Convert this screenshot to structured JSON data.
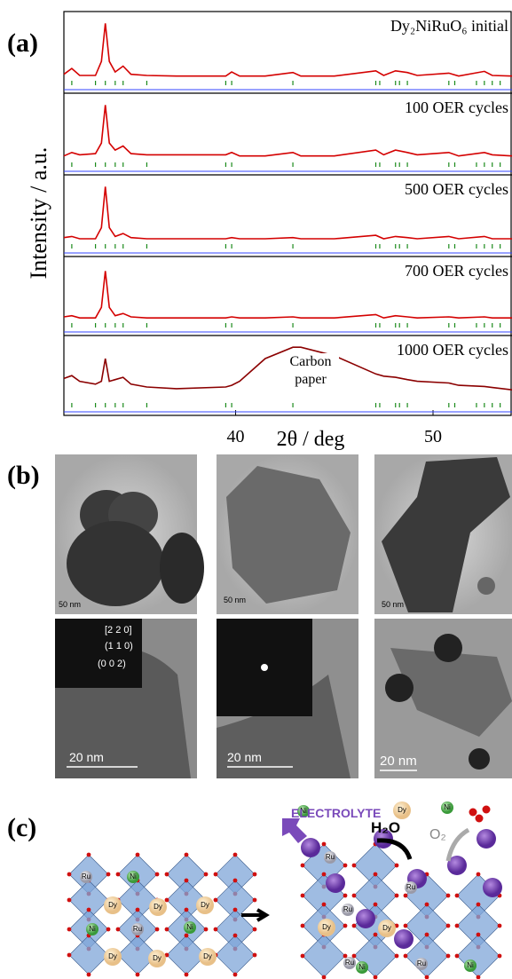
{
  "chart_data": {
    "type": "line",
    "panel_label": "(a)",
    "ylabel": "Intensity / a.u.",
    "xlabel": "2θ / deg",
    "xlim": [
      31.3,
      54
    ],
    "xticks": [
      40,
      50
    ],
    "ylim": [
      0,
      100
    ],
    "x": [
      31.3,
      31.7,
      32.1,
      32.9,
      33.2,
      33.4,
      33.6,
      33.9,
      34.3,
      34.7,
      35.5,
      37,
      39.5,
      39.8,
      40.2,
      41.5,
      42.9,
      43.3,
      45,
      47.1,
      47.5,
      48.1,
      48.7,
      49.2,
      50.8,
      51.3,
      52.6,
      53.0,
      54
    ],
    "series": [
      {
        "name": "Dy₂NiRuO₆ initial",
        "color": "#d40000",
        "values": [
          8,
          18,
          6,
          6,
          30,
          95,
          30,
          12,
          22,
          8,
          6,
          5,
          5,
          12,
          5,
          5,
          11,
          5,
          5,
          14,
          6,
          14,
          11,
          6,
          10,
          5,
          13,
          6,
          5
        ]
      },
      {
        "name": "100 OER cycles",
        "color": "#d40000",
        "values": [
          8,
          14,
          10,
          12,
          30,
          95,
          30,
          18,
          25,
          12,
          10,
          10,
          10,
          14,
          8,
          8,
          14,
          8,
          8,
          18,
          10,
          18,
          14,
          10,
          14,
          8,
          14,
          10,
          8
        ]
      },
      {
        "name": "500 OER cycles",
        "color": "#d40000",
        "values": [
          8,
          10,
          6,
          6,
          25,
          95,
          25,
          10,
          15,
          8,
          6,
          6,
          6,
          8,
          6,
          6,
          8,
          6,
          6,
          12,
          6,
          10,
          8,
          6,
          10,
          6,
          10,
          6,
          6
        ]
      },
      {
        "name": "700 OER cycles",
        "color": "#d40000",
        "values": [
          8,
          10,
          6,
          6,
          25,
          90,
          25,
          10,
          14,
          8,
          6,
          6,
          6,
          8,
          6,
          6,
          8,
          6,
          6,
          12,
          6,
          10,
          8,
          6,
          8,
          6,
          8,
          6,
          6
        ]
      },
      {
        "name": "1000 OER cycles",
        "color": "#8b0000",
        "values": [
          40,
          45,
          35,
          30,
          35,
          75,
          35,
          38,
          42,
          30,
          25,
          22,
          25,
          28,
          35,
          75,
          95,
          95,
          80,
          48,
          44,
          42,
          38,
          35,
          32,
          28,
          26,
          24,
          20
        ]
      }
    ],
    "reflections": [
      31.7,
      32.9,
      33.4,
      33.9,
      34.3,
      35.5,
      39.5,
      39.8,
      42.9,
      47.1,
      47.3,
      48.1,
      48.3,
      48.7,
      50.8,
      51.1,
      52.2,
      52.6,
      53.0,
      53.4
    ],
    "reflection_color": "#1a8a1a",
    "difference_color": "#3344ff",
    "annotation": "Carbon paper"
  },
  "panel_b": {
    "label": "(b)",
    "scale_bars": [
      "50 nm",
      "50 nm",
      "50 nm",
      "20 nm",
      "20 nm",
      "20 nm"
    ],
    "saed_labels": [
      "[2 2 0]",
      "(1 1 0)",
      "(0 0 2)"
    ]
  },
  "panel_c": {
    "label": "(c)",
    "electrolyte": "ELECTROLYTE",
    "water": "H₂O",
    "oxygen": "O₂",
    "atoms": [
      "Ru",
      "Ni",
      "Dy",
      "Dy",
      "Dy",
      "Ni",
      "Ru",
      "Ni",
      "Dy",
      "Dy",
      "Dy",
      "Ni",
      "Dy",
      "Ni",
      "Ru",
      "Ru",
      "Ru",
      "Dy",
      "Dy",
      "Ru",
      "Ni",
      "Ru",
      "Ni"
    ]
  }
}
